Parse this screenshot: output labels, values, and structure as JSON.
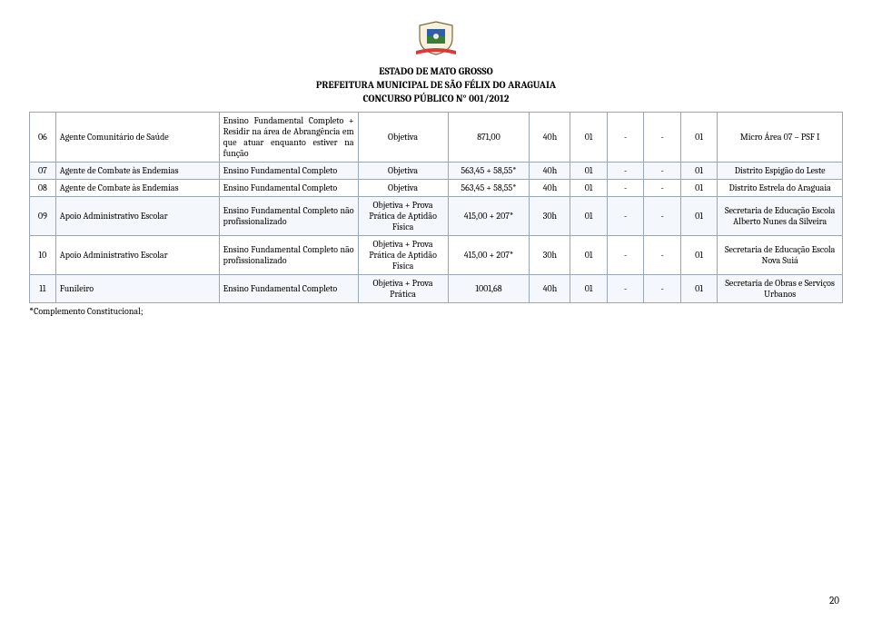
{
  "header": {
    "line1": "ESTADO DE MATO GROSSO",
    "line2": "PREFEITURA MUNICIPAL DE SÃO FÉLIX DO ARAGUAIA",
    "line3": "CONCURSO PÚBLICO N° 001/2012"
  },
  "columns": {
    "widths_pct": [
      3.2,
      20,
      17,
      11,
      10,
      5,
      4.5,
      4.5,
      4.5,
      4.5,
      15.3
    ],
    "border_color": "#9aa6b2",
    "row_bg_odd": "#ffffff",
    "row_bg_even": "#f4f7fb"
  },
  "rows": [
    {
      "num": "06",
      "cargo": "Agente Comunitário de Saúde",
      "requisito": "Ensino Fundamental Completo + Residir na área de Abrangência em que atuar enquanto estiver na função",
      "prova": "Objetiva",
      "salario": "871,00",
      "ch": "40h",
      "v1": "01",
      "v2": "-",
      "v3": "-",
      "v4": "01",
      "lotacao": "Micro Área 07 – PSF I"
    },
    {
      "num": "07",
      "cargo": "Agente de Combate às Endemias",
      "requisito": "Ensino Fundamental Completo",
      "prova": "Objetiva",
      "salario": "563,45 + 58,55*",
      "ch": "40h",
      "v1": "01",
      "v2": "-",
      "v3": "-",
      "v4": "01",
      "lotacao": "Distrito Espigão do Leste"
    },
    {
      "num": "08",
      "cargo": "Agente de Combate às Endemias",
      "requisito": "Ensino Fundamental Completo",
      "prova": "Objetiva",
      "salario": "563,45 + 58,55*",
      "ch": "40h",
      "v1": "01",
      "v2": "-",
      "v3": "-",
      "v4": "01",
      "lotacao": "Distrito Estrela do Araguaia"
    },
    {
      "num": "09",
      "cargo": "Apoio Administrativo Escolar",
      "requisito": "Ensino Fundamental Completo não profissionalizado",
      "prova": "Objetiva + Prova Prática de Aptidão Física",
      "salario": "415,00 + 207*",
      "ch": "30h",
      "v1": "01",
      "v2": "-",
      "v3": "-",
      "v4": "01",
      "lotacao": "Secretaria de Educação Escola Alberto Nunes da Silveira"
    },
    {
      "num": "10",
      "cargo": "Apoio Administrativo Escolar",
      "requisito": "Ensino Fundamental Completo não profissionalizado",
      "prova": "Objetiva + Prova Prática de Aptidão Física",
      "salario": "415,00 + 207*",
      "ch": "30h",
      "v1": "01",
      "v2": "-",
      "v3": "-",
      "v4": "01",
      "lotacao": "Secretaria de Educação Escola Nova Suiá"
    },
    {
      "num": "11",
      "cargo": "Funileiro",
      "requisito": "Ensino Fundamental Completo",
      "prova": "Objetiva + Prova Prática",
      "salario": "1001,68",
      "ch": "40h",
      "v1": "01",
      "v2": "-",
      "v3": "-",
      "v4": "01",
      "lotacao": "Secretaria de Obras e Serviços Urbanos"
    }
  ],
  "footnote": "Complemento Constitucional;",
  "page_number": "20",
  "typography": {
    "body_font": "Cambria, Georgia, serif",
    "header_fontsize_pt": 11,
    "table_fontsize_pt": 10,
    "footnote_fontsize_pt": 10,
    "text_color": "#000000"
  },
  "crest": {
    "shield_fill": "#f6f0dc",
    "shield_stroke": "#7a6a3a",
    "banner_fill": "#d93a3a",
    "accent_blue": "#2f5fa8",
    "accent_green": "#3a7d3a"
  }
}
